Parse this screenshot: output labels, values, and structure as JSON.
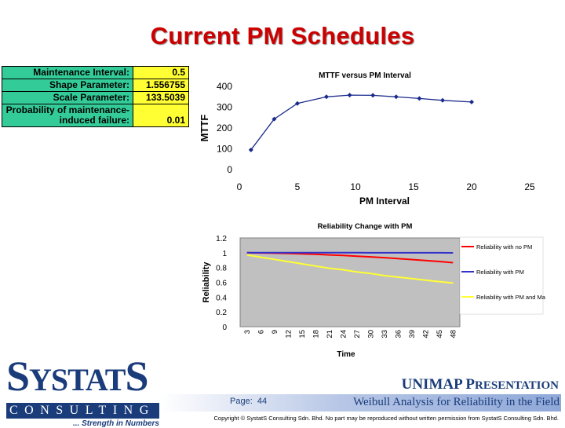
{
  "slide_title": "Current PM Schedules",
  "params": [
    {
      "label": "Maintenance Interval:",
      "value": "0.5"
    },
    {
      "label": "Shape Parameter:",
      "value": "1.556755"
    },
    {
      "label": "Scale Parameter:",
      "value": "133.5039"
    },
    {
      "label": "Probability of maintenance-induced failure:",
      "value": "0.01"
    }
  ],
  "chart_data": [
    {
      "type": "line",
      "title": "MTTF versus PM Interval",
      "xlabel": "PM Interval",
      "ylabel": "MTTF",
      "xlim": [
        0,
        25
      ],
      "ylim": [
        0,
        400
      ],
      "xticks": [
        0,
        5,
        10,
        15,
        20,
        25
      ],
      "yticks": [
        0,
        100,
        200,
        300,
        400
      ],
      "grid": false,
      "x": [
        1,
        3,
        5,
        7.5,
        9.5,
        11.5,
        13.5,
        15.5,
        17.5,
        20
      ],
      "y": [
        95,
        243,
        318,
        350,
        358,
        357,
        350,
        342,
        333,
        325
      ],
      "color": "#1a2a8c"
    },
    {
      "type": "line",
      "title": "Reliability Change with PM",
      "xlabel": "Time",
      "ylabel": "Reliability",
      "ylim": [
        0,
        1.2
      ],
      "yticks": [
        "0",
        "0.2",
        "0.4",
        "0.6",
        "0.8",
        "1",
        "1.2"
      ],
      "x": [
        3,
        6,
        9,
        12,
        15,
        18,
        21,
        24,
        27,
        30,
        33,
        36,
        39,
        42,
        45,
        48
      ],
      "xtick_labels": [
        "3",
        "6",
        "9",
        "12",
        "15",
        "18",
        "21",
        "24",
        "27",
        "30",
        "33",
        "36",
        "39",
        "42",
        "45",
        "48"
      ],
      "background": "#c0c0c0",
      "legend_position": "right",
      "series": [
        {
          "name": "Reliability with no PM",
          "color": "#ff0000",
          "values": [
            0.999,
            0.997,
            0.994,
            0.99,
            0.985,
            0.979,
            0.971,
            0.963,
            0.954,
            0.944,
            0.933,
            0.921,
            0.908,
            0.895,
            0.881,
            0.866
          ]
        },
        {
          "name": "Reliability with PM",
          "color": "#3333cc",
          "values": [
            1.0,
            1.0,
            1.0,
            1.0,
            1.0,
            1.0,
            1.0,
            1.0,
            1.0,
            0.999,
            0.999,
            0.999,
            0.999,
            0.999,
            0.999,
            0.998
          ]
        },
        {
          "name": "Reliability with PM and Maintenance induced",
          "color": "#ffff33",
          "values": [
            0.97,
            0.94,
            0.91,
            0.88,
            0.85,
            0.82,
            0.79,
            0.77,
            0.74,
            0.72,
            0.69,
            0.67,
            0.65,
            0.63,
            0.61,
            0.59
          ]
        }
      ]
    }
  ],
  "logo": {
    "name_big": "S",
    "name_mid": "YSTAT",
    "name_end": "S",
    "consulting": "CONSULTING",
    "tagline": "... Strength in Numbers"
  },
  "presentation": {
    "word1_big": "UNIMAP P",
    "word1_rest": "RESENTATION"
  },
  "footer": {
    "page_label": "Page:",
    "page_number": "44",
    "subtitle": "Weibull Analysis for Reliability in the Field",
    "copyright": "Copyright © SystatS Consulting Sdn. Bhd. No part may be reproduced without written permission from SystatS Consulting Sdn. Bhd."
  }
}
